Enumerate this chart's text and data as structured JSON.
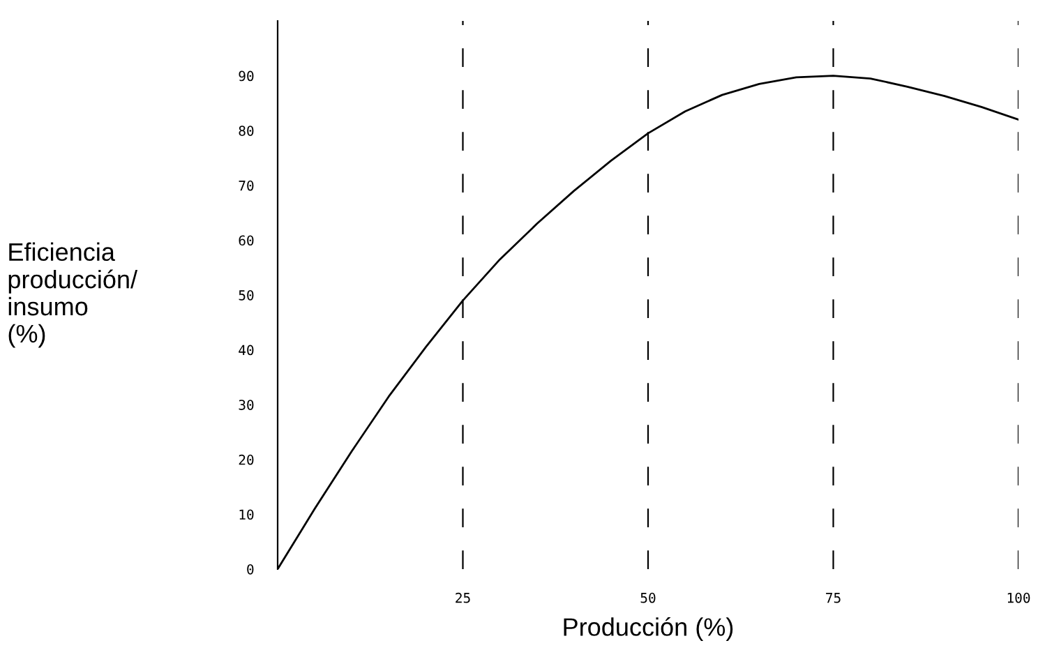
{
  "chart_data": {
    "type": "line",
    "xlabel": "Producción (%)",
    "ylabel": "Eficiencia\nproducción/\ninsumo\n(%)",
    "x": [
      0,
      5,
      10,
      15,
      20,
      25,
      30,
      35,
      40,
      45,
      50,
      55,
      60,
      65,
      70,
      75,
      80,
      85,
      90,
      95,
      100
    ],
    "series": [
      {
        "color": "#000000",
        "values": [
          0,
          11,
          21.5,
          31.5,
          40.5,
          49,
          56.5,
          63,
          69,
          74.5,
          79.5,
          83.5,
          86.5,
          88.5,
          89.7,
          90,
          89.5,
          88,
          86.3,
          84.3,
          82
        ]
      }
    ],
    "xlim": [
      0,
      100
    ],
    "ylim": [
      0,
      100
    ],
    "xticks": [
      25,
      50,
      75,
      100
    ],
    "yticks": [
      0,
      10,
      20,
      30,
      40,
      50,
      60,
      70,
      80,
      90
    ],
    "grid": "x",
    "marker": "none",
    "line_style": "solid"
  }
}
